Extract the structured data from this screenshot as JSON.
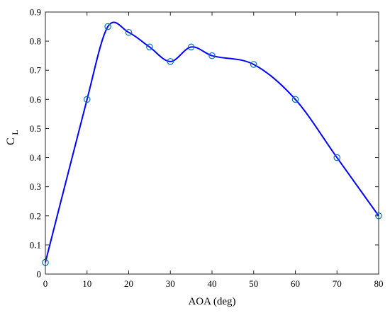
{
  "chart_data": {
    "type": "line",
    "title": "",
    "xlabel": "AOA (deg)",
    "ylabel": {
      "main": "C",
      "sub": "L"
    },
    "xlim": [
      0,
      80
    ],
    "ylim": [
      0,
      0.9
    ],
    "xticks": [
      0,
      10,
      20,
      30,
      40,
      50,
      60,
      70,
      80
    ],
    "yticks": [
      0,
      0.1,
      0.2,
      0.3,
      0.4,
      0.5,
      0.6,
      0.7,
      0.8,
      0.9
    ],
    "xtick_labels": [
      "0",
      "10",
      "20",
      "30",
      "40",
      "50",
      "60",
      "70",
      "80"
    ],
    "ytick_labels": [
      "0",
      "0.1",
      "0.2",
      "0.3",
      "0.4",
      "0.5",
      "0.6",
      "0.7",
      "0.8",
      "0.9"
    ],
    "grid": false,
    "series": [
      {
        "x": [
          0,
          10,
          15,
          20,
          25,
          30,
          35,
          40,
          50,
          60,
          70,
          80
        ],
        "y": [
          0.04,
          0.6,
          0.85,
          0.83,
          0.78,
          0.73,
          0.78,
          0.75,
          0.72,
          0.6,
          0.4,
          0.2
        ],
        "line_color": "#0000ff",
        "marker": "circle",
        "marker_color": "#0072bd"
      }
    ]
  }
}
